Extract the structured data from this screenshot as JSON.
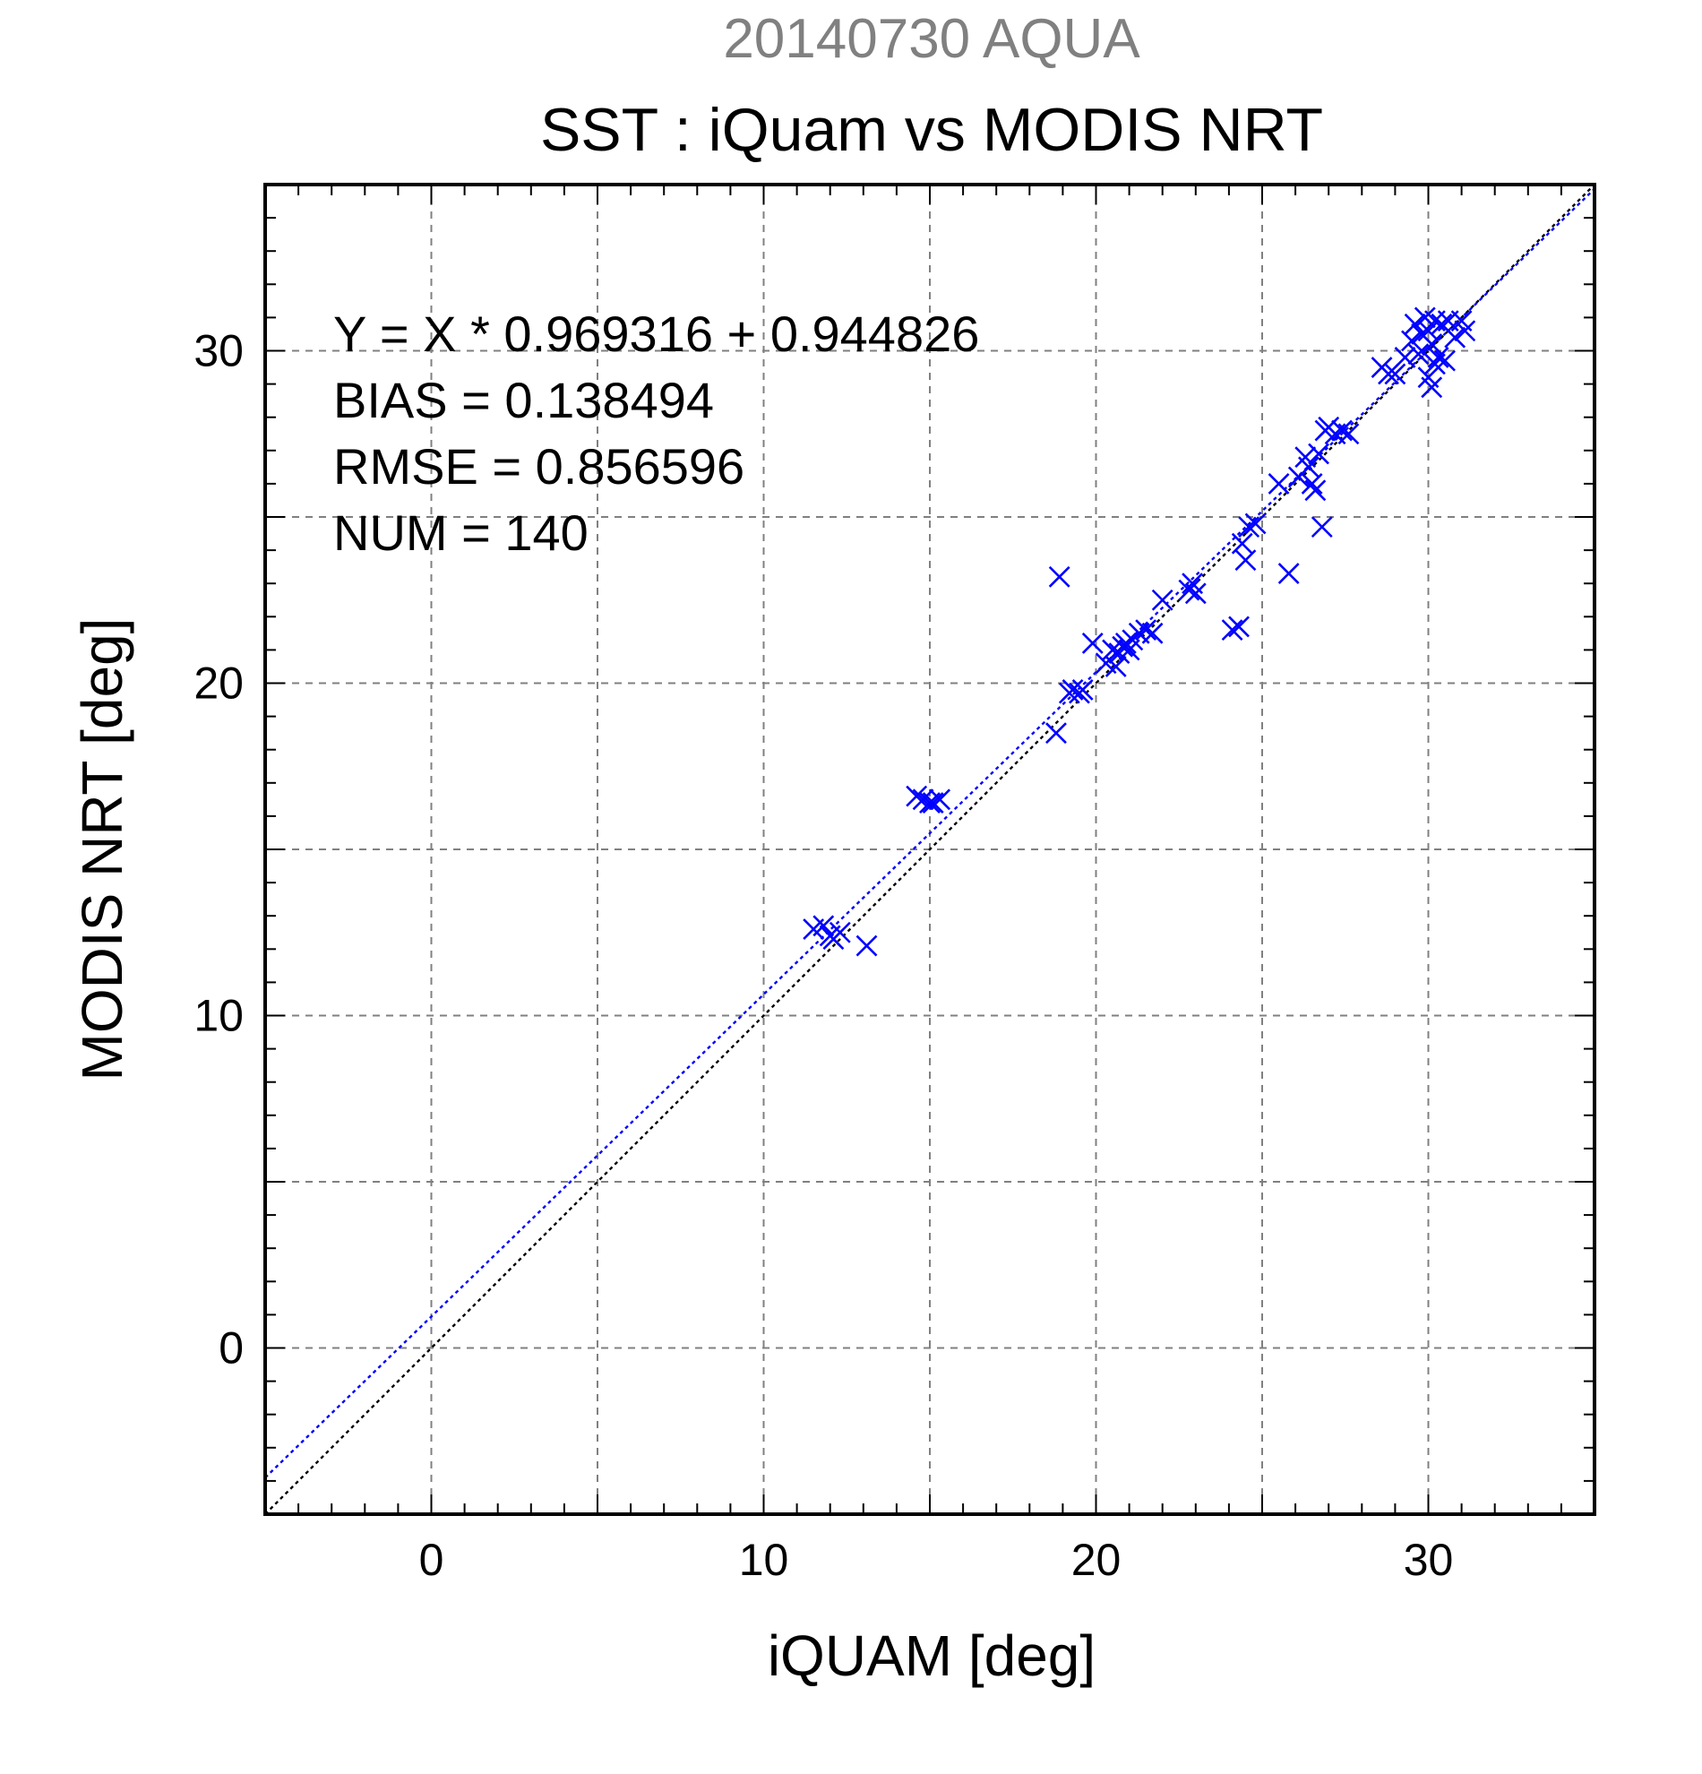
{
  "chart_data": {
    "type": "scatter",
    "title": "20140730 AQUA",
    "subtitle": "SST : iQuam vs MODIS NRT",
    "xlabel": "iQUAM [deg]",
    "ylabel": "MODIS NRT [deg]",
    "xlim": [
      -5,
      35
    ],
    "ylim": [
      -5,
      35
    ],
    "xticks": [
      0,
      10,
      20,
      30
    ],
    "yticks": [
      0,
      10,
      20,
      30
    ],
    "grid_step": 5,
    "minor_tick_step": 1,
    "grid": true,
    "annotations": [
      "Y = X * 0.969316 + 0.944826",
      "BIAS = 0.138494",
      "RMSE = 0.856596",
      "NUM = 140"
    ],
    "fit_line": {
      "slope": 0.969316,
      "intercept": 0.944826,
      "color": "#0000ff"
    },
    "identity_line": {
      "slope": 1,
      "intercept": 0,
      "color": "#000000"
    },
    "marker_color": "#0000ff",
    "series": [
      {
        "x": [
          11.5,
          11.8,
          12.0,
          12.1,
          12.3,
          13.1,
          14.6,
          14.8,
          15.0,
          15.1,
          15.3,
          18.8,
          18.9,
          19.2,
          19.3,
          19.5,
          19.6,
          19.9,
          20.3,
          20.5,
          20.6,
          20.7,
          20.8,
          20.9,
          21.0,
          21.1,
          21.3,
          21.5,
          21.7,
          22.0,
          22.8,
          22.9,
          23.0,
          24.1,
          24.3,
          24.4,
          24.5,
          24.6,
          24.8,
          25.5,
          25.8,
          26.1,
          26.3,
          26.4,
          26.5,
          26.6,
          26.7,
          26.8,
          26.9,
          27.0,
          27.2,
          27.4,
          27.6,
          28.6,
          28.8,
          29.0,
          29.3,
          29.5,
          29.6,
          29.7,
          29.8,
          29.9,
          30.0,
          30.0,
          30.1,
          30.1,
          30.2,
          30.2,
          30.3,
          30.4,
          30.5,
          30.6,
          30.8,
          31.0,
          31.1
        ],
        "y": [
          12.6,
          12.7,
          12.4,
          12.3,
          12.5,
          12.1,
          16.6,
          16.5,
          16.4,
          16.4,
          16.5,
          18.5,
          23.2,
          19.7,
          19.8,
          19.7,
          19.8,
          21.2,
          20.6,
          21.0,
          20.5,
          20.9,
          21.1,
          21.2,
          21.0,
          21.3,
          21.5,
          21.6,
          21.5,
          22.5,
          22.8,
          23.0,
          22.7,
          21.6,
          21.7,
          24.2,
          23.7,
          24.7,
          24.8,
          26.0,
          23.3,
          26.2,
          26.8,
          26.5,
          26.0,
          25.8,
          26.9,
          24.7,
          27.6,
          27.7,
          27.5,
          27.6,
          27.5,
          29.5,
          29.3,
          29.3,
          29.8,
          30.3,
          30.8,
          29.9,
          30.5,
          31.0,
          30.6,
          29.2,
          28.9,
          30.2,
          29.6,
          30.9,
          29.8,
          30.8,
          29.7,
          30.9,
          30.4,
          30.9,
          30.6
        ]
      }
    ]
  }
}
